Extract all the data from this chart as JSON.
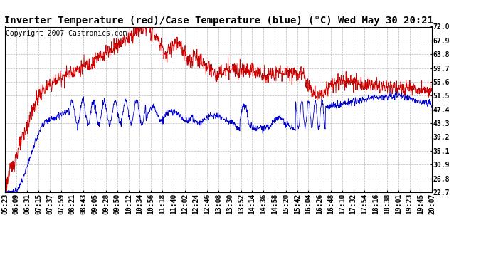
{
  "title": "Inverter Temperature (red)/Case Temperature (blue) (°C) Wed May 30 20:21",
  "copyright": "Copyright 2007 Castronics.com",
  "yticks": [
    22.7,
    26.8,
    30.9,
    35.1,
    39.2,
    43.3,
    47.4,
    51.5,
    55.6,
    59.7,
    63.8,
    67.9,
    72.0
  ],
  "ylim": [
    22.7,
    72.0
  ],
  "bg_color": "#ffffff",
  "plot_bg_color": "#ffffff",
  "grid_color": "#aaaaaa",
  "red_color": "#cc0000",
  "blue_color": "#0000cc",
  "title_fontsize": 10,
  "copyright_fontsize": 7,
  "tick_fontsize": 7,
  "x_labels": [
    "05:23",
    "06:09",
    "06:31",
    "07:15",
    "07:37",
    "07:59",
    "08:21",
    "08:43",
    "09:05",
    "09:28",
    "09:50",
    "10:12",
    "10:34",
    "10:56",
    "11:18",
    "11:40",
    "12:02",
    "12:24",
    "12:46",
    "13:08",
    "13:30",
    "13:52",
    "14:14",
    "14:36",
    "14:58",
    "15:20",
    "15:42",
    "16:04",
    "16:26",
    "16:48",
    "17:10",
    "17:32",
    "17:54",
    "18:16",
    "18:38",
    "19:01",
    "19:23",
    "19:45",
    "20:07"
  ]
}
